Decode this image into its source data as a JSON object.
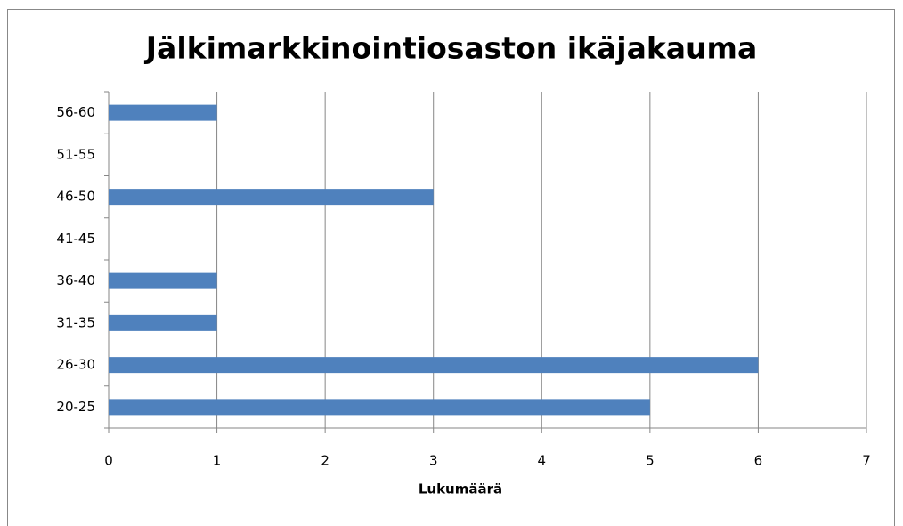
{
  "chart_data": {
    "type": "bar",
    "orientation": "horizontal",
    "title": "Jälkimarkkinointiosaston ikäjakauma",
    "x_label": "Lukumäärä",
    "categories": [
      "20-25",
      "26-30",
      "31-35",
      "36-40",
      "41-45",
      "46-50",
      "51-55",
      "56-60"
    ],
    "values": [
      5,
      6,
      1,
      1,
      0,
      3,
      0,
      1
    ],
    "color": "#4f81bd",
    "xlim": [
      0,
      7
    ],
    "xticks": [
      0,
      1,
      2,
      3,
      4,
      5,
      6,
      7
    ],
    "grid": true
  }
}
